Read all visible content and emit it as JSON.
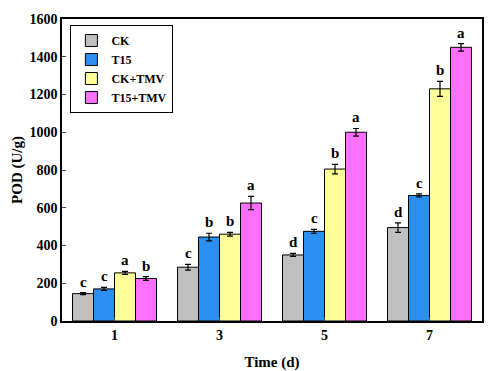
{
  "chart_data": {
    "type": "bar",
    "x_label": "Time (d)",
    "y_label": "POD (U/g)",
    "categories": [
      "1",
      "3",
      "5",
      "7"
    ],
    "series": [
      {
        "name": "CK",
        "color": "#c0c0c0",
        "values": [
          145,
          285,
          350,
          495
        ],
        "errors": [
          5,
          15,
          8,
          25
        ],
        "letters": [
          "c",
          "c",
          "d",
          "d"
        ]
      },
      {
        "name": "T15",
        "color": "#2b8ff0",
        "values": [
          170,
          445,
          475,
          665
        ],
        "errors": [
          8,
          20,
          10,
          8
        ],
        "letters": [
          "c",
          "b",
          "c",
          "c"
        ]
      },
      {
        "name": "CK+TMV",
        "color": "#ffff99",
        "values": [
          255,
          460,
          805,
          1230
        ],
        "errors": [
          8,
          10,
          25,
          40
        ],
        "letters": [
          "a",
          "b",
          "b",
          "b"
        ]
      },
      {
        "name": "T15+TMV",
        "color": "#ff70ff",
        "values": [
          225,
          625,
          1000,
          1450
        ],
        "errors": [
          10,
          35,
          20,
          20
        ],
        "letters": [
          "b",
          "a",
          "a",
          "a"
        ]
      }
    ],
    "ylim": [
      0,
      1600
    ],
    "yticks": [
      0,
      200,
      400,
      600,
      800,
      1000,
      1200,
      1400,
      1600
    ],
    "grid": false,
    "legend": "upper left"
  }
}
